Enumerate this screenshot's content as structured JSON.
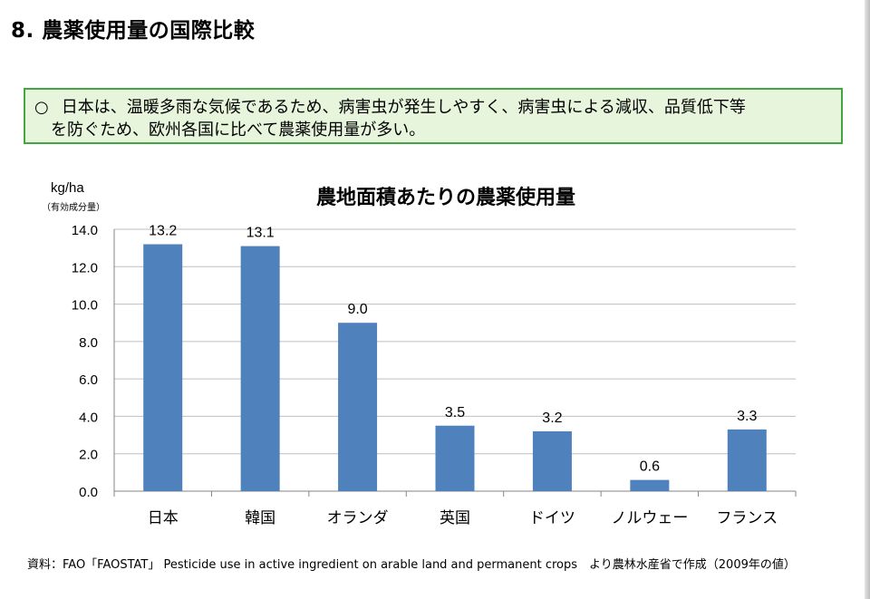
{
  "page_title": "8. 農薬使用量の国際比較",
  "note": {
    "mark": "○",
    "line1": "日本は、温暖多雨な気候であるため、病害虫が発生しやすく、病害虫による減収、品質低下等",
    "line2": "を防ぐため、欧州各国に比べて農薬使用量が多い。"
  },
  "source_text": "資料：FAO「FAOSTAT」 Pesticide use in active ingredient on arable land and permanent crops　より農林水産省で作成（2009年の値）",
  "colors": {
    "bar": "#4f81bd",
    "grid": "#bfbfbf",
    "note_border": "#44a543",
    "note_background": "#e6f5dc"
  },
  "chart_data": {
    "type": "bar",
    "title": "農地面積あたりの農薬使用量",
    "ylabel": "kg/ha",
    "ylabel_sub": "（有効成分量）",
    "xlabel": "",
    "categories": [
      "日本",
      "韓国",
      "オランダ",
      "英国",
      "ドイツ",
      "ノルウェー",
      "フランス"
    ],
    "values": [
      13.2,
      13.1,
      9.0,
      3.5,
      3.2,
      0.6,
      3.3
    ],
    "value_labels": [
      "13.2",
      "13.1",
      "9.0",
      "3.5",
      "3.2",
      "0.6",
      "3.3"
    ],
    "yticks": [
      "0.0",
      "2.0",
      "4.0",
      "6.0",
      "8.0",
      "10.0",
      "12.0",
      "14.0"
    ],
    "ylim": [
      0,
      14
    ],
    "grid": true,
    "legend": "none"
  }
}
